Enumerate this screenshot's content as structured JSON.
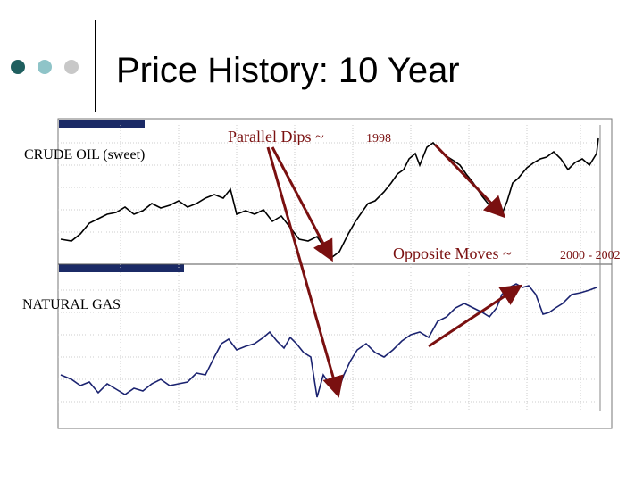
{
  "header": {
    "title": "Price History: 10 Year"
  },
  "labels": {
    "crude": "CRUDE OIL (sweet)",
    "gas": "NATURAL GAS"
  },
  "annotations": [
    {
      "text": "Parallel Dips ~",
      "detail": "1998"
    },
    {
      "text": "Opposite Moves ~",
      "detail": "2000 - 2002"
    }
  ]
}
